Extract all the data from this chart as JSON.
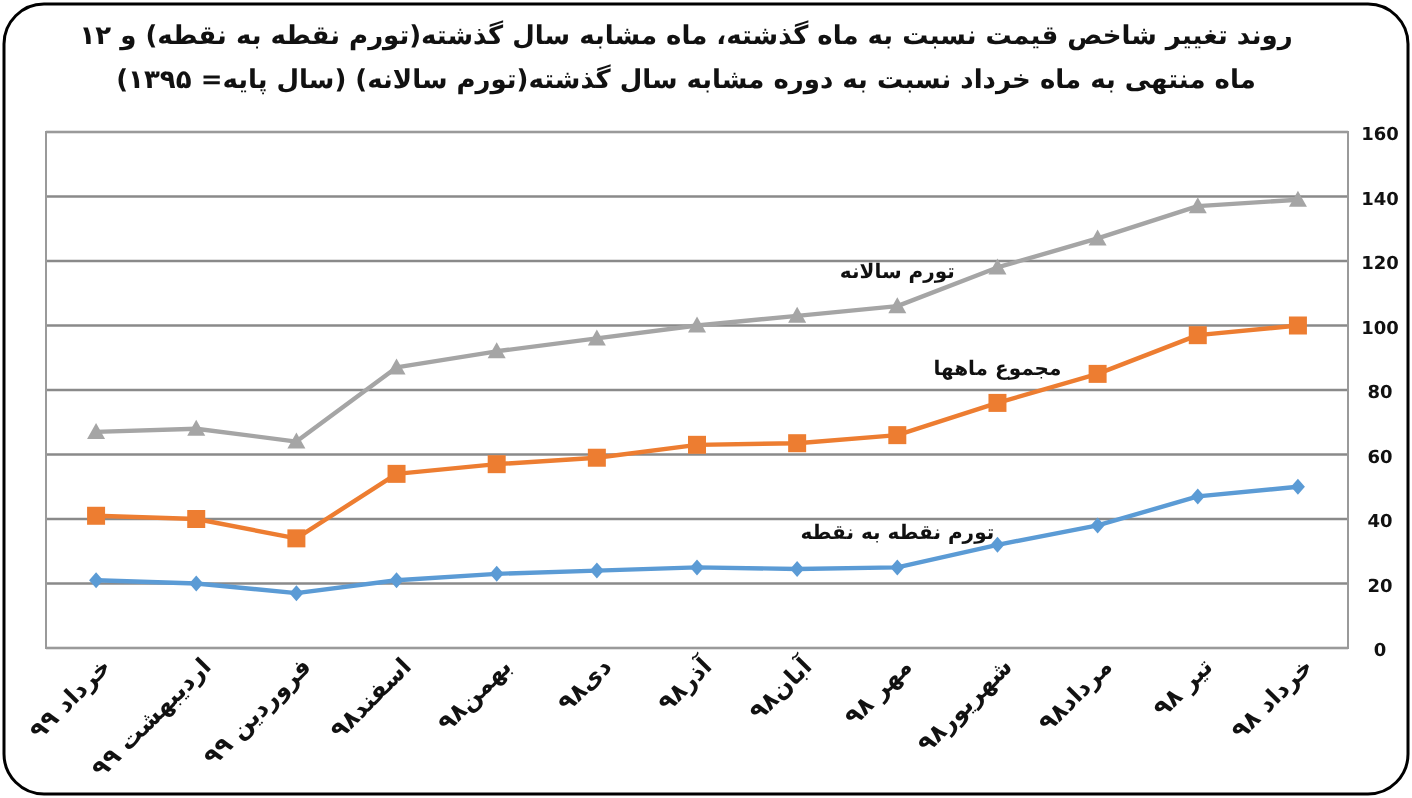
{
  "chart_data": {
    "type": "line",
    "title": "روند تغییر شاخص قیمت نسبت به ماه گذشته، ماه مشابه سال گذشته(تورم نقطه به نقطه) و ۱۲ ماه منتهی به ماه خرداد نسبت به دوره مشابه سال گذشته(تورم سالانه) (سال پایه= ۱۳۹۵)",
    "categories": [
      "خرداد ۹۹",
      "اردیبهشت ۹۹",
      "فروردین ۹۹",
      "اسفند۹۸",
      "بهمن۹۸",
      "دی۹۸",
      "آذر۹۸",
      "آبان۹۸",
      "مهر ۹۸",
      "شهریور۹۸",
      "مرداد۹۸",
      "تیر ۹۸",
      "خرداد ۹۸"
    ],
    "series": [
      {
        "name": "تورم نقطه به نقطه",
        "color": "#5b9bd5",
        "marker": "diamond",
        "values": [
          21,
          20,
          17,
          21,
          23,
          24,
          25,
          24.5,
          25,
          32,
          38,
          47,
          50
        ]
      },
      {
        "name": "مجموع ماهها",
        "color": "#ed7d31",
        "marker": "square",
        "values": [
          41,
          40,
          34,
          54,
          57,
          59,
          63,
          63.5,
          66,
          76,
          85,
          97,
          100
        ]
      },
      {
        "name": "تورم سالانه",
        "color": "#a5a5a5",
        "marker": "triangle",
        "values": [
          67,
          68,
          64,
          87,
          92,
          96,
          100,
          103,
          106,
          118,
          127,
          137,
          139
        ]
      }
    ],
    "ylim": [
      0,
      160
    ],
    "yticks": [
      0,
      20,
      40,
      60,
      80,
      100,
      120,
      140,
      160
    ],
    "grid": "y",
    "legend": false
  }
}
